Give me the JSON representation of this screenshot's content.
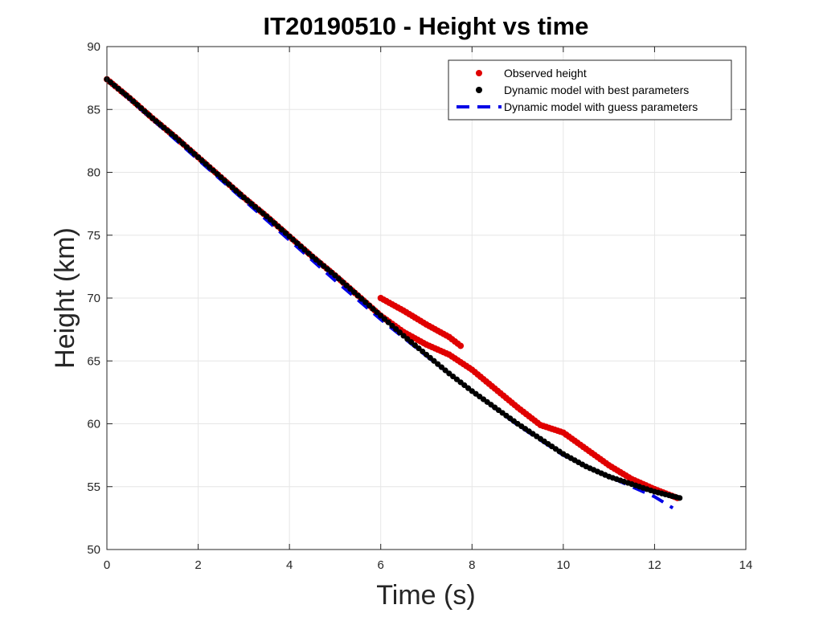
{
  "chart_data": {
    "type": "line",
    "title": "IT20190510 - Height vs time",
    "xlabel": "Time (s)",
    "ylabel": "Height (km)",
    "xlim": [
      0,
      14
    ],
    "ylim": [
      50,
      90
    ],
    "xticks": [
      0,
      2,
      4,
      6,
      8,
      10,
      12,
      14
    ],
    "yticks": [
      50,
      55,
      60,
      65,
      70,
      75,
      80,
      85,
      90
    ],
    "grid": true,
    "legend_position": "top-right",
    "series": [
      {
        "name": "Observed height",
        "style": "markers",
        "color": "#e00000",
        "x": [
          0.0,
          0.5,
          1.0,
          1.5,
          2.0,
          2.5,
          3.0,
          3.5,
          4.0,
          4.5,
          5.0,
          5.5,
          6.0,
          6.5,
          7.0,
          7.5,
          7.75,
          8.0,
          8.5,
          9.0,
          9.5,
          10.0,
          10.5,
          11.0,
          11.5,
          12.0,
          12.5
        ],
        "y": [
          87.4,
          85.9,
          84.3,
          82.8,
          81.2,
          79.6,
          78.0,
          76.5,
          74.9,
          73.3,
          71.8,
          70.2,
          68.6,
          67.3,
          66.3,
          65.5,
          65.0,
          64.3,
          62.8,
          61.3,
          59.9,
          59.3,
          58.0,
          56.7,
          55.6,
          54.8,
          54.1
        ]
      },
      {
        "name": "Dynamic model with best parameters",
        "style": "markers",
        "color": "#000000",
        "x": [
          0.0,
          0.5,
          1.0,
          1.5,
          2.0,
          2.5,
          3.0,
          3.5,
          4.0,
          4.5,
          5.0,
          5.5,
          6.0,
          6.5,
          7.0,
          7.5,
          8.0,
          8.5,
          9.0,
          9.5,
          10.0,
          10.5,
          11.0,
          11.5,
          12.0,
          12.55
        ],
        "y": [
          87.4,
          85.9,
          84.3,
          82.8,
          81.2,
          79.6,
          78.0,
          76.5,
          74.9,
          73.3,
          71.8,
          70.2,
          68.6,
          67.0,
          65.5,
          64.0,
          62.6,
          61.3,
          60.0,
          58.8,
          57.6,
          56.6,
          55.8,
          55.2,
          54.6,
          54.1
        ]
      },
      {
        "name": "Dynamic model with guess parameters",
        "style": "dashed",
        "color": "#0000e6",
        "x": [
          0.0,
          1.0,
          2.0,
          3.0,
          4.0,
          5.0,
          6.0,
          7.0,
          8.0,
          9.0,
          10.0,
          11.0,
          12.0,
          12.4
        ],
        "y": [
          87.4,
          84.2,
          81.0,
          77.8,
          74.6,
          71.4,
          68.3,
          65.4,
          62.6,
          59.9,
          57.5,
          55.8,
          54.2,
          53.3
        ]
      }
    ]
  }
}
